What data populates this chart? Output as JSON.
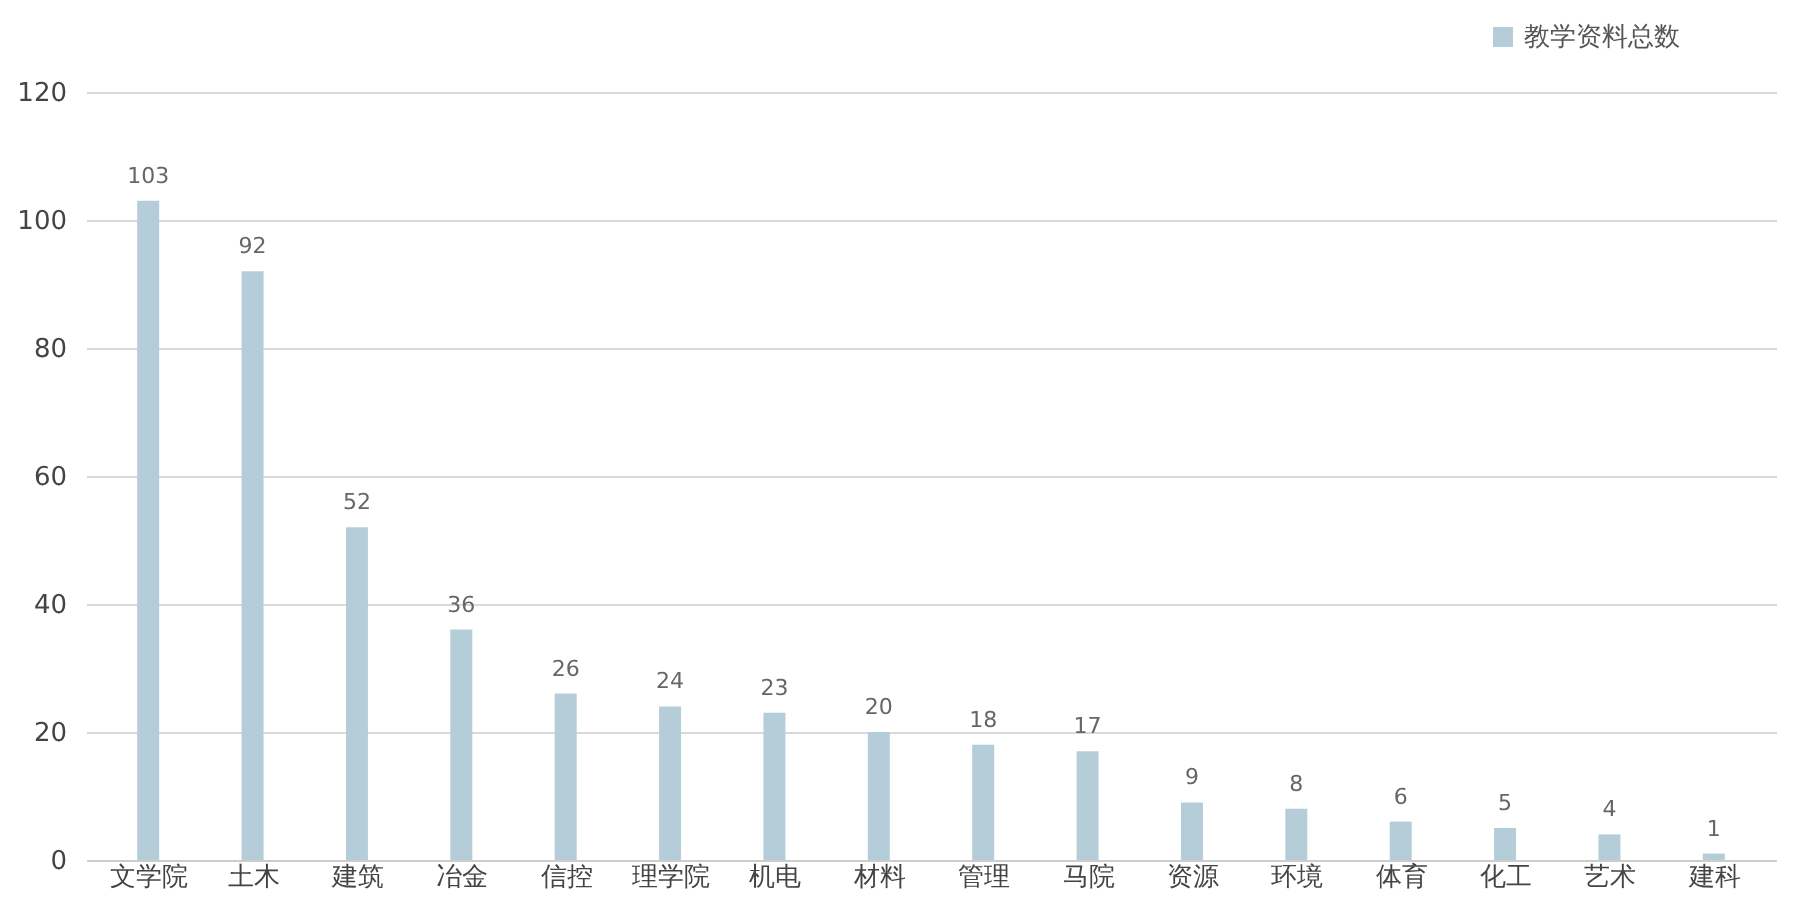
{
  "chart_data": {
    "type": "bar",
    "categories": [
      "文学院",
      "土木",
      "建筑",
      "冶金",
      "信控",
      "理学院",
      "机电",
      "材料",
      "管理",
      "马院",
      "资源",
      "环境",
      "体育",
      "化工",
      "艺术",
      "建科"
    ],
    "series": [
      {
        "name": "教学资料总数",
        "color": "#b4cdd9",
        "values": [
          103,
          92,
          52,
          36,
          26,
          24,
          23,
          20,
          18,
          17,
          9,
          8,
          6,
          5,
          4,
          1
        ]
      }
    ],
    "ylim": [
      0,
      120
    ],
    "yticks": [
      0,
      20,
      40,
      60,
      80,
      100,
      120
    ],
    "grid": "y",
    "legend": "top right",
    "data_labels": true
  }
}
